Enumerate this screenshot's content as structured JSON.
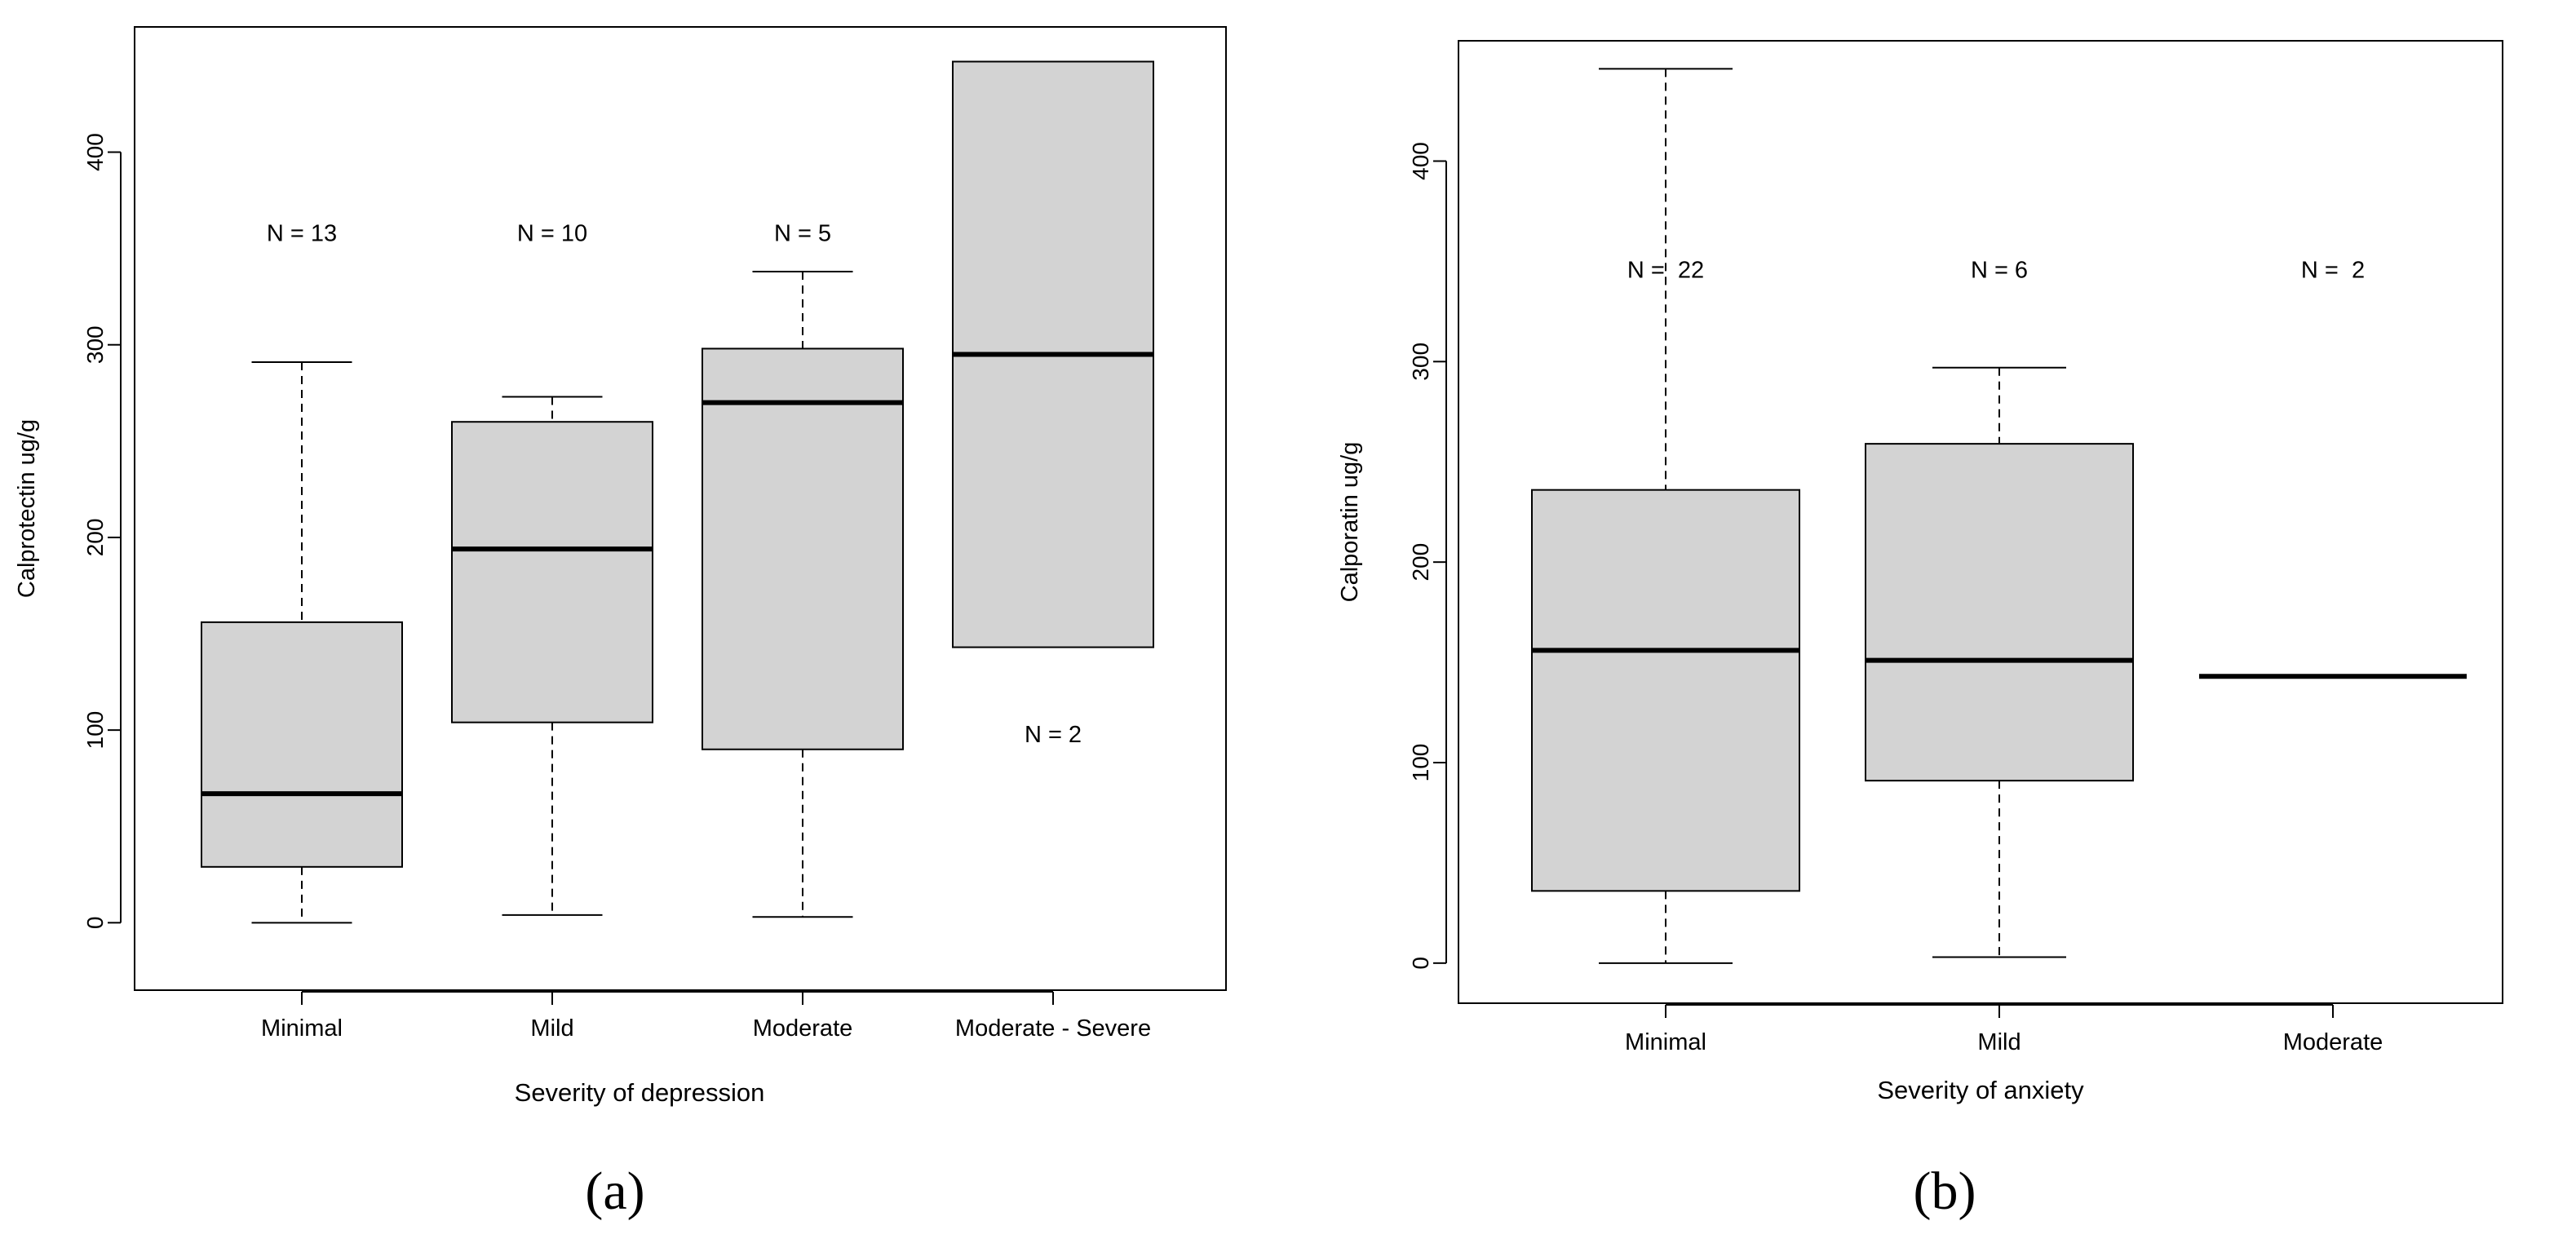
{
  "chart_data": [
    {
      "type": "boxplot",
      "panel_label": "(a)",
      "xlabel": "Severity of depression",
      "ylabel": "Calprotectin ug/g",
      "ylim": [
        -35,
        465
      ],
      "y_ticks": [
        0,
        100,
        200,
        300,
        400
      ],
      "grid": false,
      "categories": [
        "Minimal",
        "Mild",
        "Moderate",
        "Moderate - Severe"
      ],
      "boxes": [
        {
          "category": "Minimal",
          "min": 0,
          "q1": 29,
          "median": 67,
          "q3": 156,
          "max": 291,
          "n_label": "N = 13",
          "label_y": 358
        },
        {
          "category": "Mild",
          "min": 4,
          "q1": 104,
          "median": 194,
          "q3": 260,
          "max": 273,
          "n_label": "N = 10",
          "label_y": 358
        },
        {
          "category": "Moderate",
          "min": 3,
          "q1": 90,
          "median": 270,
          "q3": 298,
          "max": 338,
          "n_label": "N = 5",
          "label_y": 358
        },
        {
          "category": "Moderate - Severe",
          "min": 143,
          "q1": 143,
          "median": 295,
          "q3": 447,
          "max": 447,
          "n_label": "N = 2",
          "label_y": 98
        }
      ]
    },
    {
      "type": "boxplot",
      "panel_label": "(b)",
      "xlabel": "Severity of anxiety",
      "ylabel": "Calporatin ug/g",
      "ylim": [
        -20,
        460
      ],
      "y_ticks": [
        0,
        100,
        200,
        300,
        400
      ],
      "grid": false,
      "categories": [
        "Minimal",
        "Mild",
        "Moderate"
      ],
      "boxes": [
        {
          "category": "Minimal",
          "min": 0,
          "q1": 36,
          "median": 156,
          "q3": 236,
          "max": 446,
          "n_label": "N =  22",
          "label_y": 346
        },
        {
          "category": "Mild",
          "min": 3,
          "q1": 91,
          "median": 151,
          "q3": 259,
          "max": 297,
          "n_label": "N = 6",
          "label_y": 346
        },
        {
          "category": "Moderate",
          "min": 143,
          "q1": 143,
          "median": 143,
          "q3": 143,
          "max": 143,
          "n_label": "N =  2",
          "label_y": 346
        }
      ]
    }
  ],
  "colors": {
    "box_fill": "#d3d3d3",
    "line": "#000000",
    "background": "#ffffff"
  }
}
